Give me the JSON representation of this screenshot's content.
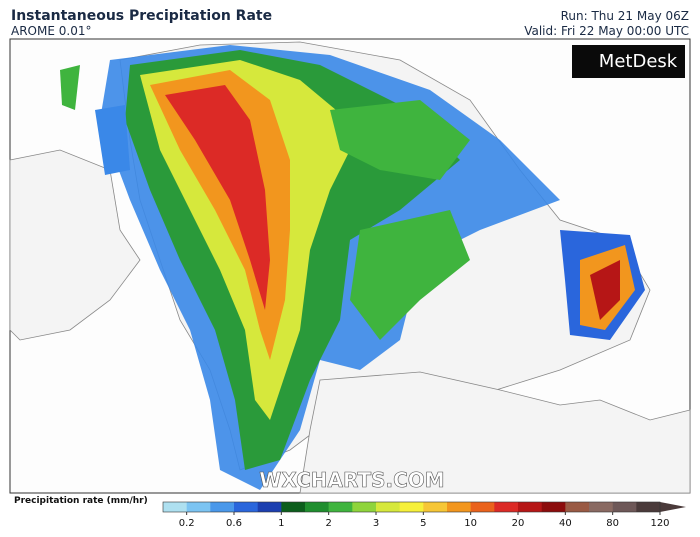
{
  "header": {
    "title": "Instantaneous Precipitation Rate",
    "model": "AROME 0.01°",
    "run": "Run: Thu 21 May 06Z",
    "valid": "Valid: Fri 22 May 00:00 UTC"
  },
  "logo": "MetDesk",
  "watermark": "WXCHARTS.COM",
  "legend": {
    "label": "Precipitation rate (mm/hr)",
    "colors": [
      "#aee0f0",
      "#7cc4f2",
      "#4a98ea",
      "#2a66dc",
      "#1c3fb0",
      "#0c5e1c",
      "#1f8e2e",
      "#3fb43e",
      "#8fd43c",
      "#d6e83c",
      "#f6f03a",
      "#f6c636",
      "#f2961e",
      "#ea621c",
      "#dc2a26",
      "#b61616",
      "#8c0c0c",
      "#9a5a44",
      "#8a6a62",
      "#6e5858",
      "#4a3a3a"
    ],
    "ticks": [
      0.2,
      0.6,
      1,
      2,
      3,
      5,
      10,
      20,
      40,
      80,
      120
    ]
  }
}
